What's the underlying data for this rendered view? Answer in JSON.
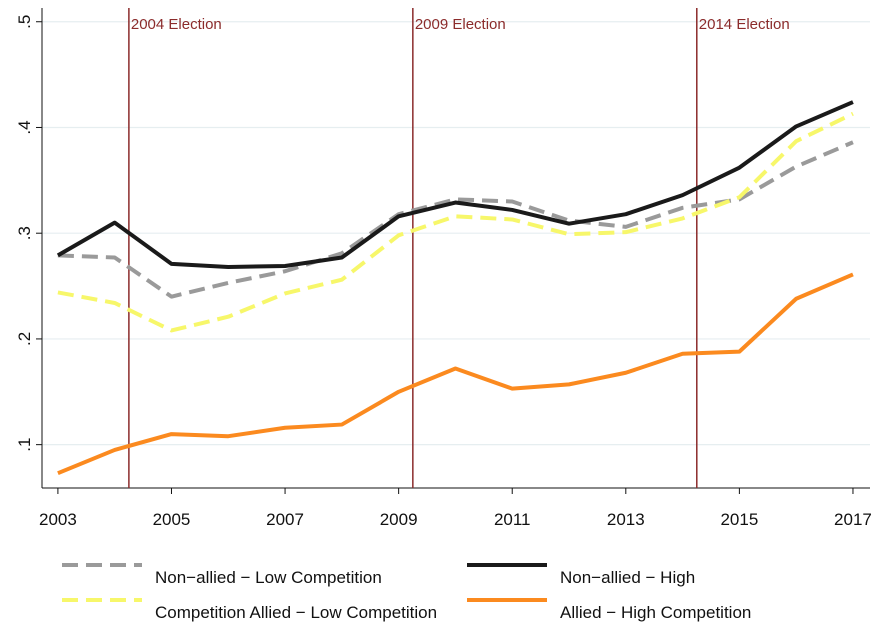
{
  "chart_data": {
    "type": "line",
    "x": [
      2003,
      2004,
      2005,
      2006,
      2007,
      2008,
      2009,
      2010,
      2011,
      2012,
      2013,
      2014,
      2015,
      2016,
      2017
    ],
    "series": [
      {
        "name": "Non−allied − Low Competition",
        "color": "#9a9a9a",
        "style": "dashed",
        "values": [
          0.279,
          0.277,
          0.24,
          0.253,
          0.264,
          0.281,
          0.318,
          0.332,
          0.33,
          0.312,
          0.306,
          0.324,
          0.332,
          0.363,
          0.386
        ]
      },
      {
        "name": "Non−allied − High",
        "color": "#1a1a1a",
        "style": "solid",
        "values": [
          0.279,
          0.31,
          0.271,
          0.268,
          0.269,
          0.277,
          0.316,
          0.329,
          0.322,
          0.309,
          0.318,
          0.336,
          0.362,
          0.401,
          0.424
        ]
      },
      {
        "name": "Competition Allied − Low Competition",
        "color": "#f7f76a",
        "style": "dashed",
        "values": [
          0.244,
          0.234,
          0.208,
          0.221,
          0.243,
          0.256,
          0.298,
          0.316,
          0.313,
          0.299,
          0.301,
          0.314,
          0.334,
          0.387,
          0.413
        ]
      },
      {
        "name": "Allied − High Competition",
        "color": "#fb8a1f",
        "style": "solid",
        "values": [
          0.073,
          0.095,
          0.11,
          0.108,
          0.116,
          0.119,
          0.15,
          0.172,
          0.153,
          0.157,
          0.168,
          0.186,
          0.188,
          0.238,
          0.261
        ]
      }
    ],
    "xlim": [
      2002.72,
      2017.3
    ],
    "xticks": [
      2003,
      2005,
      2007,
      2009,
      2011,
      2013,
      2015,
      2017
    ],
    "ylim": [
      0.059,
      0.513
    ],
    "yticks": [
      {
        "value": 0.1,
        "label": ".1"
      },
      {
        "value": 0.2,
        "label": ".2"
      },
      {
        "value": 0.3,
        "label": ".3"
      },
      {
        "value": 0.4,
        "label": ".4"
      },
      {
        "value": 0.5,
        "label": ".5"
      }
    ],
    "grid": true,
    "annotations": [
      {
        "text": "2004 Election",
        "x": 2004.25
      },
      {
        "text": "2009 Election",
        "x": 2009.25
      },
      {
        "text": "2014 Election",
        "x": 2014.25
      }
    ],
    "annotation_color": "#8b2b2b"
  }
}
